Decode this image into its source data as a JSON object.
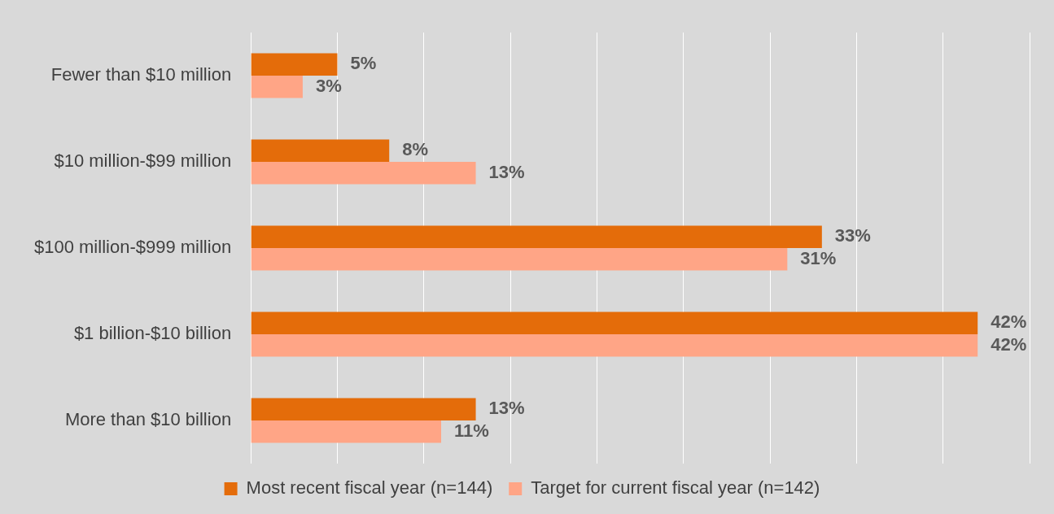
{
  "chart_data": {
    "type": "bar",
    "orientation": "horizontal",
    "categories": [
      "Fewer than $10 million",
      "$10 million-$99 million",
      "$100 million-$999 million",
      "$1 billion-$10 billion",
      "More than $10 billion"
    ],
    "series": [
      {
        "name": "Most recent fiscal year (n=144)",
        "color": "#e46c0a",
        "values": [
          5,
          8,
          33,
          42,
          13
        ],
        "value_labels": [
          "5%",
          "8%",
          "33%",
          "42%",
          "13%"
        ]
      },
      {
        "name": "Target for current fiscal year (n=142)",
        "color": "#ffa586",
        "values": [
          3,
          13,
          31,
          42,
          11
        ],
        "value_labels": [
          "3%",
          "13%",
          "31%",
          "42%",
          "11%"
        ]
      }
    ],
    "xlim": [
      0,
      45
    ],
    "xticks": [
      {
        "value": 0,
        "label": null
      },
      {
        "value": 5,
        "label": null
      },
      {
        "value": 10,
        "label": null
      },
      {
        "value": 15,
        "label": null
      },
      {
        "value": 20,
        "label": null
      },
      {
        "value": 25,
        "label": null
      },
      {
        "value": 30,
        "label": null
      },
      {
        "value": 35,
        "label": null
      },
      {
        "value": 40,
        "label": null
      },
      {
        "value": 45,
        "label": null
      }
    ],
    "tick_labels": "y",
    "grid": "x",
    "legend": "bottom"
  }
}
